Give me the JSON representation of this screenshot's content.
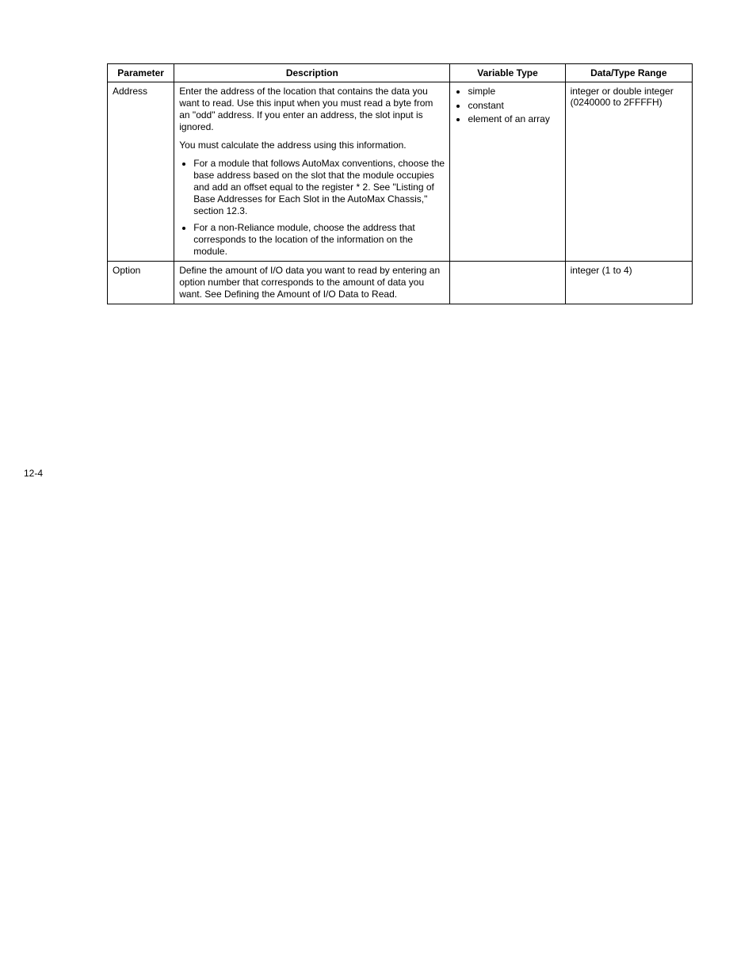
{
  "pageNumber": "12-4",
  "table": {
    "headers": {
      "parameter": "Parameter",
      "description": "Description",
      "variableType": "Variable Type",
      "dataTypeRange": "Data/Type Range"
    },
    "rows": [
      {
        "parameter": "Address",
        "description": {
          "para1": "Enter the address of the location that contains the data you want to read. Use this input when you must read a byte from an \"odd\" address. If you enter an address, the slot input is ignored.",
          "para2": "You must calculate the address using this information.",
          "bullets": [
            "For a module that follows AutoMax conventions, choose the base address based on the slot that the module occupies and add an offset equal to the register * 2. See \"Listing of Base Addresses for Each Slot in the AutoMax Chassis,\" section 12.3.",
            "For a non-Reliance module, choose the address that corresponds to the location of the information on the module."
          ]
        },
        "variableType": [
          "simple",
          "constant",
          "element of an array"
        ],
        "dataTypeRange": "integer or double integer (0240000 to 2FFFFH)"
      },
      {
        "parameter": "Option",
        "description": {
          "para1": "Define the amount of I/O data you want to read by entering an option number that corresponds to the amount of data you want. See Defining the Amount of I/O Data to Read."
        },
        "variableType": [],
        "dataTypeRange": "integer (1 to 4)"
      }
    ]
  }
}
